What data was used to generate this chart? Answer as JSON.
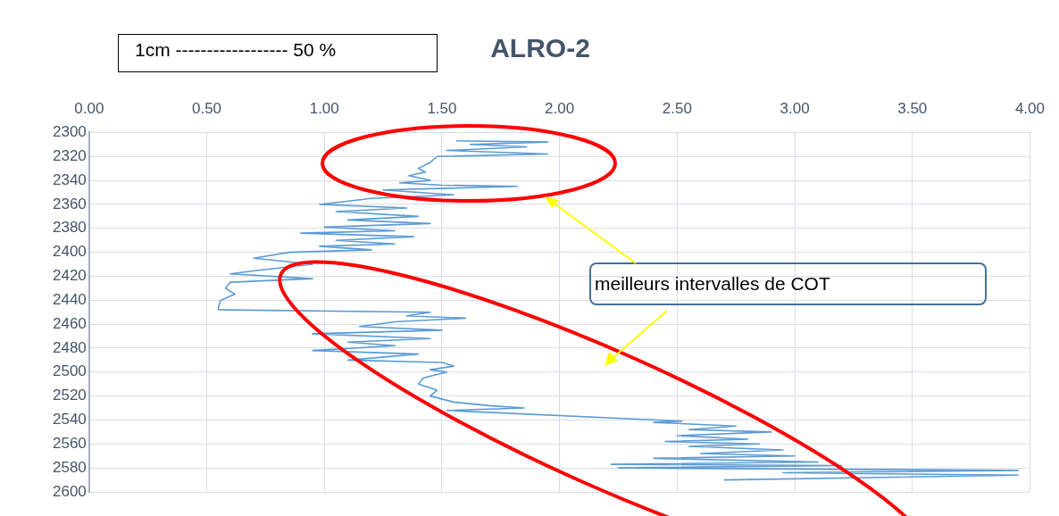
{
  "chart_data": {
    "type": "line",
    "title": "ALRO-2",
    "annotations": [
      "1cm ------------------ 50 %",
      "meilleurs intervalles de COT"
    ],
    "x": [
      1.56,
      1.95,
      1.62,
      1.86,
      1.52,
      1.95,
      1.48,
      1.45,
      1.4,
      1.43,
      1.36,
      1.45,
      1.32,
      1.5,
      1.82,
      1.25,
      1.55,
      1.2,
      0.98,
      1.35,
      1.05,
      1.4,
      1.1,
      1.45,
      1.0,
      1.3,
      0.9,
      1.38,
      1.05,
      1.3,
      0.98,
      1.2,
      0.85,
      0.7,
      0.95,
      0.72,
      0.6,
      0.95,
      0.6,
      0.58,
      0.62,
      0.56,
      0.55,
      0.55,
      1.45,
      1.35,
      1.6,
      1.3,
      1.15,
      1.5,
      0.95,
      1.45,
      1.1,
      1.3,
      0.95,
      1.4,
      1.1,
      1.5,
      1.55,
      1.45,
      1.52,
      1.42,
      1.4,
      1.48,
      1.45,
      1.55,
      1.7,
      1.85,
      1.52,
      2.52,
      2.4,
      2.75,
      2.55,
      2.9,
      2.5,
      2.8,
      2.45,
      2.85,
      2.55,
      2.95,
      2.6,
      3.0,
      2.4,
      3.1,
      2.22,
      3.2,
      2.25,
      3.95,
      2.95,
      3.95,
      2.7
    ],
    "values": [
      2307,
      2308,
      2310,
      2312,
      2315,
      2318,
      2320,
      2325,
      2330,
      2333,
      2336,
      2340,
      2342,
      2344,
      2345,
      2348,
      2352,
      2355,
      2360,
      2363,
      2366,
      2370,
      2373,
      2376,
      2379,
      2382,
      2384,
      2387,
      2390,
      2393,
      2395,
      2398,
      2400,
      2405,
      2410,
      2415,
      2418,
      2422,
      2425,
      2430,
      2435,
      2440,
      2445,
      2448,
      2450,
      2453,
      2455,
      2458,
      2462,
      2465,
      2468,
      2472,
      2475,
      2478,
      2482,
      2485,
      2490,
      2492,
      2495,
      2498,
      2500,
      2505,
      2510,
      2515,
      2520,
      2525,
      2528,
      2530,
      2532,
      2541,
      2542,
      2545,
      2548,
      2550,
      2553,
      2556,
      2558,
      2560,
      2562,
      2565,
      2568,
      2570,
      2572,
      2575,
      2577,
      2578,
      2580,
      2582,
      2584,
      2586,
      2590
    ],
    "color": "#5b9bd5",
    "xlim": [
      0,
      4
    ],
    "xticks": [
      {
        "value": 0,
        "label": "0.00"
      },
      {
        "value": 0.5,
        "label": "0.50"
      },
      {
        "value": 1,
        "label": "1.00"
      },
      {
        "value": 1.5,
        "label": "1.50"
      },
      {
        "value": 2,
        "label": "2.00"
      },
      {
        "value": 2.5,
        "label": "2.50"
      },
      {
        "value": 3,
        "label": "3.00"
      },
      {
        "value": 3.5,
        "label": "3.50"
      },
      {
        "value": 4,
        "label": "4.00"
      }
    ],
    "ylim": [
      2600,
      2300
    ],
    "yticks": [
      2300,
      2320,
      2340,
      2360,
      2380,
      2400,
      2420,
      2440,
      2460,
      2480,
      2500,
      2520,
      2540,
      2560,
      2580,
      2600
    ],
    "grid": true,
    "legend": false,
    "marker": "none",
    "line_style": "solid"
  }
}
